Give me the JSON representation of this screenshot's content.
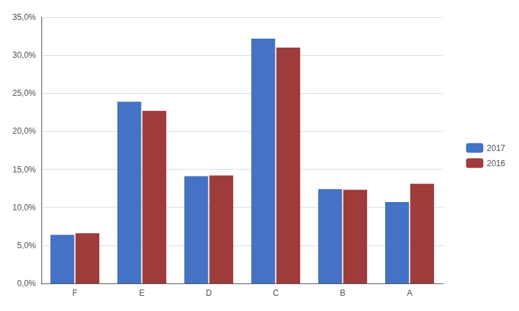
{
  "chart_data": {
    "type": "bar",
    "categories": [
      "F",
      "E",
      "D",
      "C",
      "B",
      "A"
    ],
    "series": [
      {
        "name": "2017",
        "color": "#4472C4",
        "values": [
          0.064,
          0.239,
          0.141,
          0.322,
          0.124,
          0.107
        ]
      },
      {
        "name": "2016",
        "color": "#9E3B3B",
        "values": [
          0.066,
          0.227,
          0.142,
          0.31,
          0.123,
          0.131
        ]
      }
    ],
    "ylim": [
      0,
      0.35
    ],
    "yticks": [
      {
        "value": 0,
        "label": "0,0%"
      },
      {
        "value": 0.05,
        "label": "5,0%"
      },
      {
        "value": 0.1,
        "label": "10,0%"
      },
      {
        "value": 0.15,
        "label": "15,0%"
      },
      {
        "value": 0.2,
        "label": "20,0%"
      },
      {
        "value": 0.25,
        "label": "25,0%"
      },
      {
        "value": 0.3,
        "label": "30,0%"
      },
      {
        "value": 0.35,
        "label": "35,0%"
      }
    ],
    "grid": true,
    "legend": "right"
  }
}
